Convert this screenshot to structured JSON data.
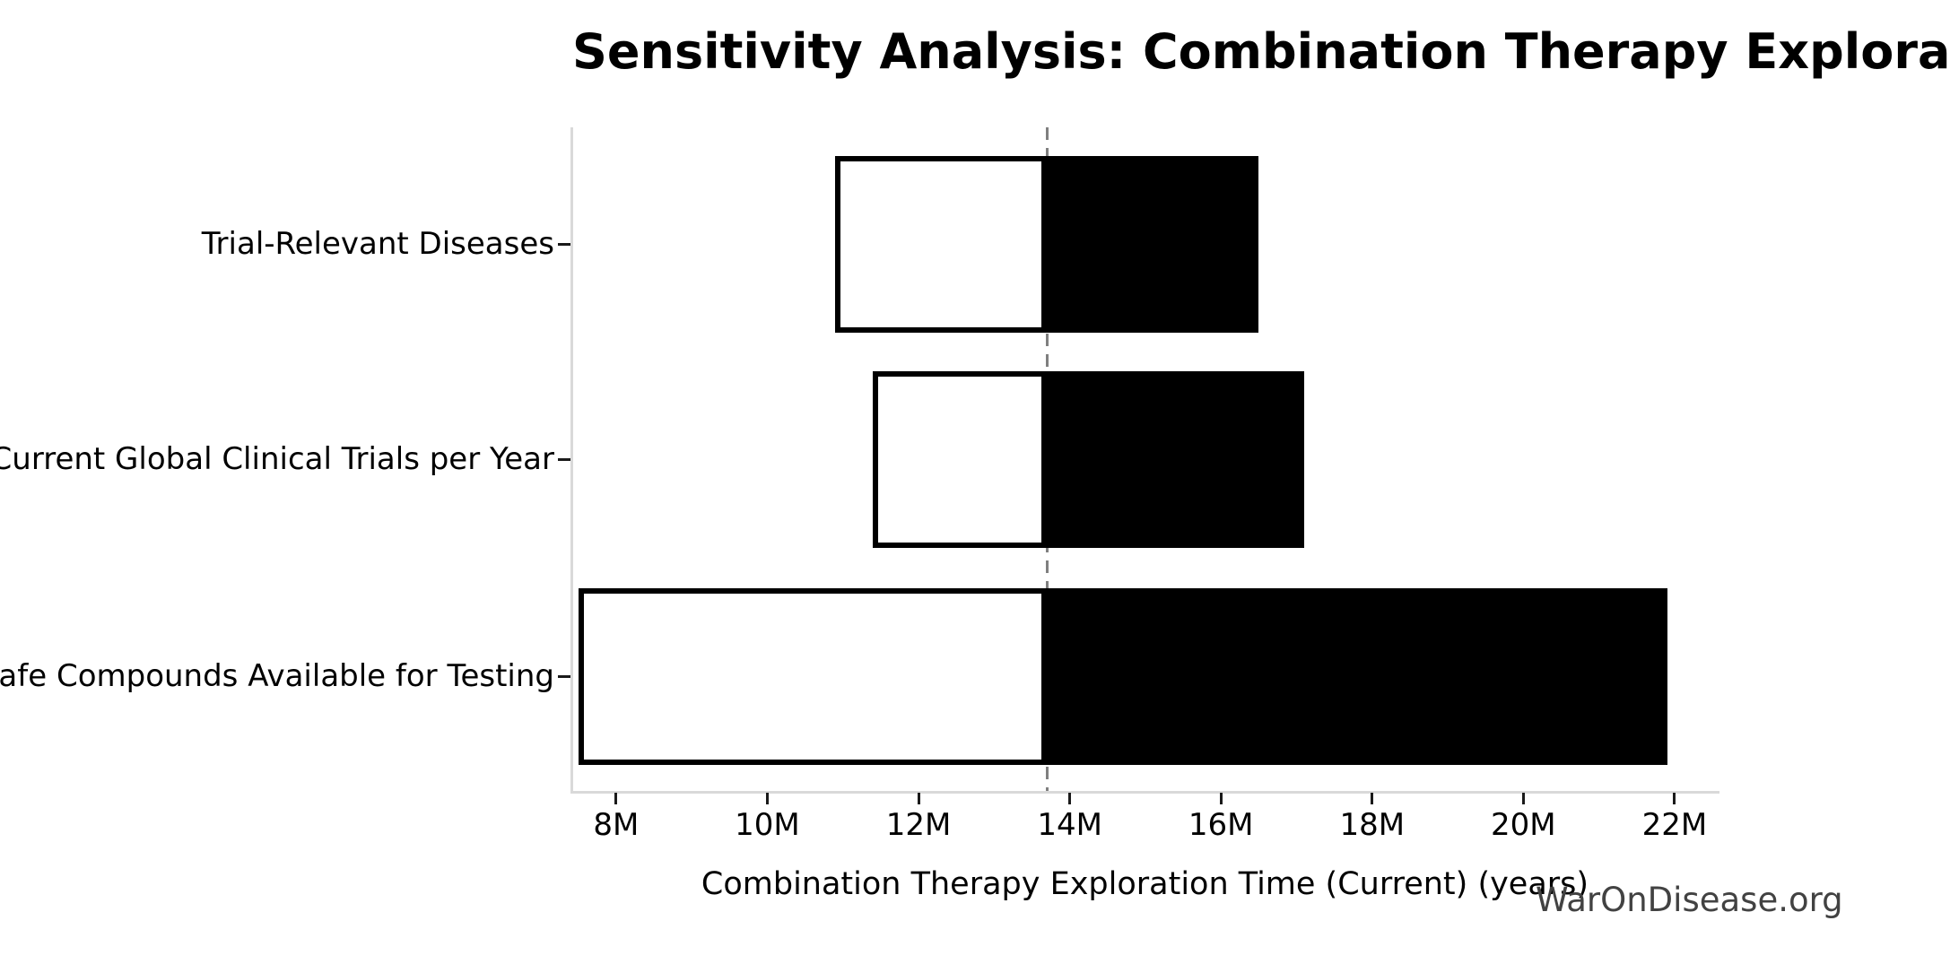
{
  "chart_data": {
    "type": "bar",
    "subtype": "tornado-sensitivity",
    "orientation": "horizontal",
    "title": "Sensitivity Analysis: Combination Therapy Exploration Time (Current)",
    "xlabel": "Combination Therapy Exploration Time (Current) (years)",
    "watermark": "WarOnDisease.org",
    "categories": [
      "Trial-Relevant Diseases",
      "Current Global Clinical Trials per Year",
      "Safe Compounds Available for Testing"
    ],
    "series": [
      {
        "name": "low-end (white bar)",
        "values": [
          10.9,
          11.4,
          7.5
        ]
      },
      {
        "name": "high-end (black bar)",
        "values": [
          16.5,
          17.1,
          21.9
        ]
      }
    ],
    "baseline": 13.7,
    "unit": "M years",
    "xlim": [
      7.42,
      22.57
    ],
    "xticks": [
      8,
      10,
      12,
      14,
      16,
      18,
      20,
      22
    ],
    "xtick_labels": [
      "8M",
      "10M",
      "12M",
      "14M",
      "16M",
      "18M",
      "20M",
      "22M"
    ],
    "grid": false,
    "legend": "none",
    "colors": {
      "bar_low_fill": "#ffffff",
      "bar_high_fill": "#000000",
      "bar_edge": "#000000",
      "baseline_line": "#7f7f7f",
      "spine": "#d9d9d9",
      "tick": "#1a1a1a",
      "text": "#000000",
      "watermark_text": "#424242"
    }
  }
}
